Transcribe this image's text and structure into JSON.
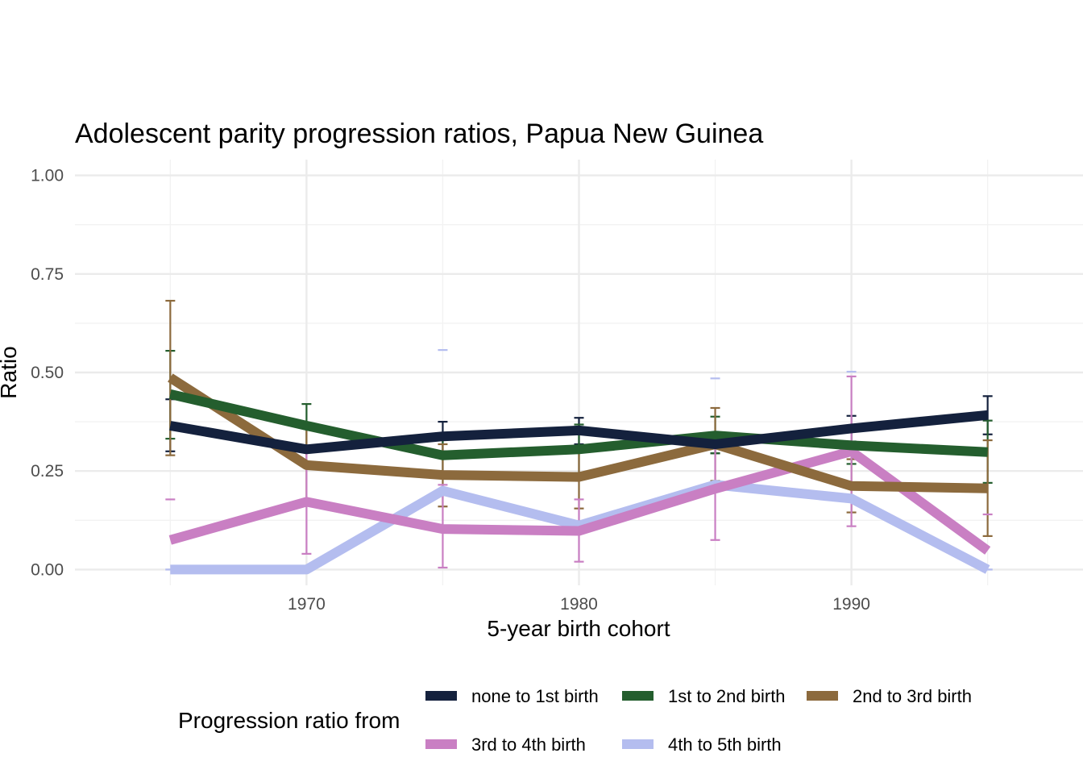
{
  "chart_data": {
    "type": "line",
    "title": "Adolescent parity progression ratios,  Papua New Guinea",
    "xlabel": "5-year birth cohort",
    "ylabel": "Ratio",
    "x": [
      1965,
      1970,
      1975,
      1980,
      1985,
      1990,
      1995
    ],
    "xlim": [
      1961.5,
      1998.5
    ],
    "ylim": [
      -0.04,
      1.04
    ],
    "xticks": [
      1970,
      1980,
      1990
    ],
    "xtick_labels": [
      "1970",
      "1980",
      "1990"
    ],
    "yticks": [
      0,
      0.25,
      0.5,
      0.75,
      1.0
    ],
    "ytick_labels": [
      "0.00",
      "0.25",
      "0.50",
      "0.75",
      "1.00"
    ],
    "grid": true,
    "legend": {
      "title": "Progression ratio from",
      "position": "bottom"
    },
    "series": [
      {
        "name": "none to 1st birth",
        "color": "#14213d",
        "values": [
          0.365,
          0.305,
          0.338,
          0.353,
          0.318,
          0.358,
          0.392
        ],
        "lower": [
          0.3,
          null,
          0.3,
          0.318,
          0.295,
          0.325,
          0.343
        ],
        "upper": [
          0.432,
          null,
          0.375,
          0.385,
          0.338,
          0.39,
          0.44
        ]
      },
      {
        "name": "1st to 2nd birth",
        "color": "#245e2e",
        "values": [
          0.445,
          0.365,
          0.29,
          0.305,
          0.34,
          0.315,
          0.298
        ],
        "lower": [
          0.332,
          0.312,
          0.245,
          0.245,
          0.295,
          0.268,
          0.22
        ],
        "upper": [
          0.555,
          0.42,
          0.34,
          0.368,
          0.388,
          0.362,
          0.378
        ]
      },
      {
        "name": "2nd to 3rd birth",
        "color": "#8c6a3d",
        "values": [
          0.487,
          0.265,
          0.24,
          0.235,
          0.318,
          0.212,
          0.206
        ],
        "lower": [
          0.29,
          0.17,
          0.16,
          0.155,
          0.225,
          0.145,
          0.085
        ],
        "upper": [
          0.682,
          0.36,
          0.318,
          0.312,
          0.41,
          0.28,
          0.328
        ]
      },
      {
        "name": "3rd to 4th birth",
        "color": "#c97fc3",
        "values": [
          0.075,
          0.172,
          0.103,
          0.098,
          0.205,
          0.3,
          0.048
        ],
        "lower": [
          null,
          0.04,
          0.005,
          0.02,
          0.075,
          0.11,
          null
        ],
        "upper": [
          0.178,
          0.305,
          0.215,
          0.178,
          0.335,
          0.49,
          0.14
        ]
      },
      {
        "name": "4th to 5th birth",
        "color": "#b4bdef",
        "values": [
          0.0,
          0.0,
          0.2,
          0.112,
          0.215,
          0.18,
          0.0
        ],
        "lower": [
          0.0,
          null,
          null,
          null,
          null,
          null,
          0.0
        ],
        "upper": [
          0.0,
          null,
          0.557,
          null,
          0.485,
          0.502,
          0.0
        ]
      }
    ]
  }
}
